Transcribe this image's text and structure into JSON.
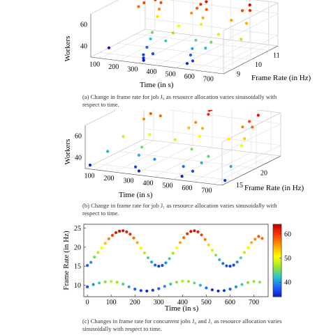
{
  "colors": {
    "colormap": [
      "#0a14c8",
      "#1e64ff",
      "#28c8c8",
      "#a0e628",
      "#ffff00",
      "#ffa500",
      "#ff4000",
      "#c80000"
    ]
  },
  "captions": {
    "a": "(a) Change in frame rate for job J₀ as resource allocation varies sinusoidally with respect to time.",
    "b": "(b) Change in frame rate for job J₁ as resource allocation varies sinusoidally with respect to time.",
    "c": "(c) Changes in frame rate for concurrent jobs J₀ and J₁ as resource allocation varies sinusoidally with respect to time."
  },
  "chart_data": [
    {
      "type": "scatter",
      "subtype": "3d-scatter",
      "xlabel": "Time (in s)",
      "ylabel": "Frame Rate (in Hz)",
      "zlabel": "Workers",
      "x_ticks": [
        "100",
        "200",
        "300",
        "400",
        "500",
        "600",
        "700"
      ],
      "y_ticks": [
        "9",
        "10",
        "11"
      ],
      "z_ticks": [
        "40",
        "60"
      ],
      "xlim": [
        50,
        750
      ],
      "ylim": [
        8.5,
        11.5
      ],
      "zlim": [
        30,
        70
      ],
      "points": [
        [
          50,
          9.5,
          30
        ],
        [
          120,
          10.4,
          62
        ],
        [
          150,
          10.9,
          66
        ],
        [
          180,
          11.0,
          68
        ],
        [
          200,
          10.8,
          64
        ],
        [
          220,
          10.4,
          55
        ],
        [
          240,
          9.9,
          45
        ],
        [
          260,
          9.4,
          36
        ],
        [
          280,
          9.0,
          33
        ],
        [
          300,
          8.8,
          30
        ],
        [
          320,
          9.1,
          34
        ],
        [
          340,
          9.6,
          42
        ],
        [
          360,
          10.1,
          52
        ],
        [
          380,
          10.6,
          60
        ],
        [
          400,
          10.9,
          66
        ],
        [
          420,
          11.0,
          68
        ],
        [
          440,
          10.8,
          63
        ],
        [
          460,
          10.3,
          54
        ],
        [
          480,
          9.8,
          44
        ],
        [
          500,
          9.3,
          35
        ],
        [
          520,
          8.9,
          31
        ],
        [
          540,
          9.0,
          33
        ],
        [
          560,
          9.5,
          41
        ],
        [
          580,
          10.0,
          50
        ],
        [
          600,
          10.5,
          59
        ],
        [
          620,
          10.9,
          65
        ],
        [
          640,
          11.1,
          69
        ],
        [
          660,
          10.9,
          66
        ],
        [
          680,
          10.5,
          58
        ],
        [
          700,
          10.0,
          48
        ],
        [
          130,
          10.6,
          64
        ],
        [
          170,
          10.8,
          66
        ],
        [
          210,
          10.6,
          60
        ],
        [
          250,
          9.7,
          41
        ],
        [
          290,
          8.9,
          31
        ],
        [
          350,
          9.9,
          47
        ],
        [
          390,
          10.8,
          63
        ],
        [
          450,
          10.5,
          58
        ],
        [
          490,
          9.5,
          39
        ],
        [
          570,
          9.7,
          45
        ]
      ]
    },
    {
      "type": "scatter",
      "subtype": "3d-scatter",
      "xlabel": "Time (in s)",
      "ylabel": "Frame Rate (in Hz)",
      "zlabel": "Workers",
      "x_ticks": [
        "100",
        "200",
        "300",
        "400",
        "500",
        "600",
        "700"
      ],
      "y_ticks": [
        "15",
        "20"
      ],
      "z_ticks": [
        "40",
        "60"
      ],
      "xlim": [
        50,
        750
      ],
      "ylim": [
        13,
        25
      ],
      "zlim": [
        30,
        70
      ],
      "points": [
        [
          50,
          14,
          31
        ],
        [
          90,
          16,
          40
        ],
        [
          120,
          18,
          50
        ],
        [
          150,
          21,
          60
        ],
        [
          170,
          23,
          66
        ],
        [
          190,
          24,
          68
        ],
        [
          210,
          22,
          62
        ],
        [
          230,
          19,
          52
        ],
        [
          250,
          16,
          40
        ],
        [
          270,
          14.5,
          33
        ],
        [
          300,
          14,
          31
        ],
        [
          330,
          16,
          38
        ],
        [
          360,
          19,
          50
        ],
        [
          390,
          22,
          60
        ],
        [
          410,
          24,
          67
        ],
        [
          430,
          23,
          66
        ],
        [
          450,
          21,
          58
        ],
        [
          470,
          18,
          46
        ],
        [
          490,
          15.5,
          36
        ],
        [
          520,
          14,
          31
        ],
        [
          550,
          15,
          34
        ],
        [
          580,
          17,
          44
        ],
        [
          610,
          20,
          54
        ],
        [
          640,
          23,
          64
        ],
        [
          660,
          24,
          68
        ],
        [
          680,
          22,
          62
        ],
        [
          700,
          19,
          52
        ],
        [
          720,
          16,
          40
        ],
        [
          740,
          14,
          32
        ],
        [
          160,
          22,
          63
        ],
        [
          200,
          23.5,
          66
        ],
        [
          240,
          17,
          45
        ],
        [
          380,
          21,
          57
        ],
        [
          420,
          24,
          68
        ],
        [
          460,
          20,
          53
        ],
        [
          570,
          16,
          40
        ],
        [
          630,
          22,
          61
        ],
        [
          690,
          20,
          56
        ]
      ]
    },
    {
      "type": "scatter",
      "xlabel": "Time (in s)",
      "ylabel": "Frame Rate (in Hz)",
      "colorbar_label": "",
      "x_ticks": [
        "0",
        "100",
        "200",
        "300",
        "400",
        "500",
        "600",
        "700"
      ],
      "y_ticks": [
        "10",
        "15",
        "20",
        "25"
      ],
      "colorbar_ticks": [
        "40",
        "50",
        "60"
      ],
      "xlim": [
        -15,
        760
      ],
      "ylim": [
        7,
        26
      ],
      "clim": [
        34,
        64
      ],
      "series": [
        {
          "points": [
            [
              0,
              15.2,
              38
            ],
            [
              15,
              16.0,
              40
            ],
            [
              30,
              17.4,
              45
            ],
            [
              45,
              18.6,
              48
            ],
            [
              60,
              19.8,
              51
            ],
            [
              75,
              21.0,
              54
            ],
            [
              90,
              22.2,
              57
            ],
            [
              105,
              23.1,
              60
            ],
            [
              120,
              23.8,
              62
            ],
            [
              135,
              24.2,
              63
            ],
            [
              150,
              24.3,
              63
            ],
            [
              165,
              24.0,
              62
            ],
            [
              180,
              23.4,
              61
            ],
            [
              195,
              22.4,
              58
            ],
            [
              210,
              21.2,
              55
            ],
            [
              225,
              19.8,
              51
            ],
            [
              240,
              18.5,
              48
            ],
            [
              255,
              17.2,
              44
            ],
            [
              270,
              16.1,
              41
            ],
            [
              285,
              15.3,
              38
            ],
            [
              300,
              15.0,
              36
            ],
            [
              315,
              15.2,
              37
            ],
            [
              330,
              15.9,
              40
            ],
            [
              345,
              17.0,
              43
            ],
            [
              360,
              18.4,
              47
            ],
            [
              375,
              19.8,
              51
            ],
            [
              390,
              21.2,
              55
            ],
            [
              405,
              22.5,
              58
            ],
            [
              420,
              23.5,
              61
            ],
            [
              435,
              24.1,
              63
            ],
            [
              450,
              24.3,
              63
            ],
            [
              465,
              24.0,
              62
            ],
            [
              480,
              23.2,
              60
            ],
            [
              495,
              22.0,
              57
            ],
            [
              510,
              20.6,
              53
            ],
            [
              525,
              19.2,
              49
            ],
            [
              540,
              17.9,
              46
            ],
            [
              555,
              16.7,
              42
            ],
            [
              570,
              15.7,
              39
            ],
            [
              585,
              15.1,
              37
            ],
            [
              600,
              15.0,
              36
            ],
            [
              615,
              15.3,
              37
            ],
            [
              630,
              16.1,
              40
            ],
            [
              645,
              17.2,
              44
            ],
            [
              660,
              18.6,
              48
            ],
            [
              675,
              19.9,
              51
            ],
            [
              690,
              21.2,
              55
            ],
            [
              705,
              22.1,
              57
            ],
            [
              720,
              22.8,
              59
            ],
            [
              735,
              22.3,
              58
            ]
          ]
        },
        {
          "points": [
            [
              0,
              9.6,
              37
            ],
            [
              25,
              10.2,
              40
            ],
            [
              50,
              10.6,
              43
            ],
            [
              75,
              10.9,
              46
            ],
            [
              100,
              11.0,
              48
            ],
            [
              125,
              10.8,
              47
            ],
            [
              150,
              10.3,
              44
            ],
            [
              175,
              9.6,
              41
            ],
            [
              200,
              9.0,
              38
            ],
            [
              225,
              8.6,
              36
            ],
            [
              250,
              8.5,
              35
            ],
            [
              275,
              8.7,
              36
            ],
            [
              300,
              9.1,
              38
            ],
            [
              325,
              9.7,
              40
            ],
            [
              350,
              10.3,
              43
            ],
            [
              375,
              10.8,
              46
            ],
            [
              400,
              11.1,
              48
            ],
            [
              425,
              11.0,
              47
            ],
            [
              450,
              10.6,
              45
            ],
            [
              475,
              10.0,
              42
            ],
            [
              500,
              9.3,
              39
            ],
            [
              525,
              8.8,
              36
            ],
            [
              550,
              8.5,
              35
            ],
            [
              575,
              8.6,
              36
            ],
            [
              600,
              9.0,
              38
            ],
            [
              625,
              9.6,
              40
            ],
            [
              650,
              10.2,
              43
            ],
            [
              675,
              10.7,
              46
            ],
            [
              700,
              11.0,
              47
            ],
            [
              725,
              10.8,
              46
            ]
          ]
        }
      ]
    }
  ]
}
